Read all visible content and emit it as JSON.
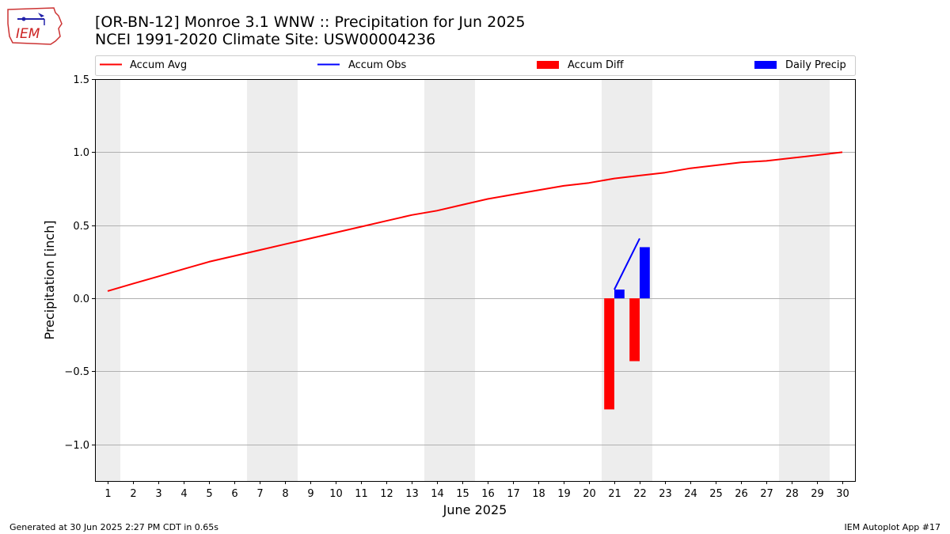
{
  "header": {
    "title_line1": "[OR-BN-12] Monroe 3.1 WNW :: Precipitation for Jun 2025",
    "title_line2": "NCEI 1991-2020 Climate Site: USW00004236",
    "logo_text": "IEM"
  },
  "footer": {
    "generated": "Generated at 30 Jun 2025 2:27 PM CDT in 0.65s",
    "app": "IEM Autoplot App #17"
  },
  "chart_data": {
    "type": "line",
    "xlabel": "June 2025",
    "ylabel": "Precipitation [inch]",
    "xlim": [
      0.5,
      30.5
    ],
    "ylim": [
      -1.25,
      1.5
    ],
    "x_ticks": [
      1,
      2,
      3,
      4,
      5,
      6,
      7,
      8,
      9,
      10,
      11,
      12,
      13,
      14,
      15,
      16,
      17,
      18,
      19,
      20,
      21,
      22,
      23,
      24,
      25,
      26,
      27,
      28,
      29,
      30
    ],
    "y_ticks": [
      -1.0,
      -0.5,
      0.0,
      0.5,
      1.0,
      1.5
    ],
    "y_tick_labels": [
      "−1.0",
      "−0.5",
      "0.0",
      "0.5",
      "1.0",
      "1.5"
    ],
    "grid": "horizontal",
    "legend_position": "top",
    "weekend_shading": [
      [
        0.5,
        1.5
      ],
      [
        6.5,
        8.5
      ],
      [
        13.5,
        15.5
      ],
      [
        20.5,
        22.5
      ],
      [
        27.5,
        29.5
      ]
    ],
    "series": [
      {
        "name": "Accum Avg",
        "kind": "line",
        "color": "#ff0000",
        "x": [
          1,
          2,
          3,
          4,
          5,
          6,
          7,
          8,
          9,
          10,
          11,
          12,
          13,
          14,
          15,
          16,
          17,
          18,
          19,
          20,
          21,
          22,
          23,
          24,
          25,
          26,
          27,
          28,
          29,
          30
        ],
        "values": [
          0.05,
          0.1,
          0.15,
          0.2,
          0.25,
          0.29,
          0.33,
          0.37,
          0.41,
          0.45,
          0.49,
          0.53,
          0.57,
          0.6,
          0.64,
          0.68,
          0.71,
          0.74,
          0.77,
          0.79,
          0.82,
          0.84,
          0.86,
          0.89,
          0.91,
          0.93,
          0.94,
          0.96,
          0.98,
          1.0
        ]
      },
      {
        "name": "Accum Obs",
        "kind": "line",
        "color": "#0000ff",
        "x": [
          21,
          22
        ],
        "values": [
          0.06,
          0.41
        ]
      },
      {
        "name": "Accum Diff",
        "kind": "bar",
        "color": "#ff0000",
        "offset": -0.2,
        "x": [
          21,
          22
        ],
        "values": [
          -0.76,
          -0.43
        ]
      },
      {
        "name": "Daily Precip",
        "kind": "bar",
        "color": "#0000ff",
        "offset": 0.2,
        "x": [
          21,
          22
        ],
        "values": [
          0.06,
          0.35
        ]
      }
    ]
  }
}
